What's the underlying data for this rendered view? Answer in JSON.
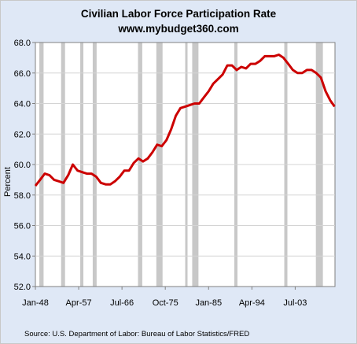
{
  "chart_data": {
    "type": "line",
    "title": "Civilian Labor Force Participation Rate",
    "subtitle": "www.mybudget360.com",
    "xlabel": "",
    "ylabel": "Percent",
    "ylim": [
      52.0,
      68.0
    ],
    "yticks": [
      "52.0",
      "54.0",
      "56.0",
      "58.0",
      "60.0",
      "62.0",
      "64.0",
      "66.0",
      "68.0"
    ],
    "xlim": [
      "1948-01",
      "2011-12"
    ],
    "xticks": [
      {
        "date": "1948-01",
        "label": "Jan-48"
      },
      {
        "date": "1957-04",
        "label": "Apr-57"
      },
      {
        "date": "1966-07",
        "label": "Jul-66"
      },
      {
        "date": "1975-10",
        "label": "Oct-75"
      },
      {
        "date": "1985-01",
        "label": "Jan-85"
      },
      {
        "date": "1994-04",
        "label": "Apr-94"
      },
      {
        "date": "2003-07",
        "label": "Jul-03"
      }
    ],
    "grid": true,
    "series_color": "#cc0000",
    "recession_color": "#c8c8c8",
    "recessions": [
      [
        "1948-11",
        "1949-10"
      ],
      [
        "1953-07",
        "1954-05"
      ],
      [
        "1957-08",
        "1958-04"
      ],
      [
        "1960-04",
        "1961-02"
      ],
      [
        "1969-12",
        "1970-11"
      ],
      [
        "1973-11",
        "1975-03"
      ],
      [
        "1980-01",
        "1980-07"
      ],
      [
        "1981-07",
        "1982-11"
      ],
      [
        "1990-07",
        "1991-03"
      ],
      [
        "2001-03",
        "2001-11"
      ],
      [
        "2007-12",
        "2009-06"
      ]
    ],
    "series": [
      {
        "x": [
          "1948-01",
          "1949-01",
          "1950-01",
          "1951-01",
          "1952-01",
          "1953-01",
          "1954-01",
          "1955-01",
          "1956-01",
          "1957-01",
          "1958-01",
          "1959-01",
          "1960-01",
          "1961-01",
          "1962-01",
          "1963-01",
          "1964-01",
          "1965-01",
          "1966-01",
          "1967-01",
          "1968-01",
          "1969-01",
          "1970-01",
          "1971-01",
          "1972-01",
          "1973-01",
          "1974-01",
          "1975-01",
          "1976-01",
          "1977-01",
          "1978-01",
          "1979-01",
          "1980-01",
          "1981-01",
          "1982-01",
          "1983-01",
          "1984-01",
          "1985-01",
          "1986-01",
          "1987-01",
          "1988-01",
          "1989-01",
          "1990-01",
          "1991-01",
          "1992-01",
          "1993-01",
          "1994-01",
          "1995-01",
          "1996-01",
          "1997-01",
          "1998-01",
          "1999-01",
          "2000-01",
          "2001-01",
          "2002-01",
          "2003-01",
          "2004-01",
          "2005-01",
          "2006-01",
          "2007-01",
          "2008-01",
          "2009-01",
          "2010-01",
          "2011-01",
          "2011-12"
        ],
        "values": [
          58.6,
          59.0,
          59.4,
          59.3,
          59.0,
          58.9,
          58.8,
          59.3,
          60.0,
          59.6,
          59.5,
          59.4,
          59.4,
          59.2,
          58.8,
          58.7,
          58.7,
          58.9,
          59.2,
          59.6,
          59.6,
          60.1,
          60.4,
          60.2,
          60.4,
          60.8,
          61.3,
          61.2,
          61.6,
          62.3,
          63.2,
          63.7,
          63.8,
          63.9,
          64.0,
          64.0,
          64.4,
          64.8,
          65.3,
          65.6,
          65.9,
          66.5,
          66.5,
          66.2,
          66.4,
          66.3,
          66.6,
          66.6,
          66.8,
          67.1,
          67.1,
          67.1,
          67.2,
          67.0,
          66.6,
          66.2,
          66.0,
          66.0,
          66.2,
          66.2,
          66.0,
          65.7,
          64.8,
          64.2,
          63.8
        ]
      }
    ],
    "source": "Source: U.S. Department of Labor: Bureau of Labor Statistics/FRED"
  }
}
